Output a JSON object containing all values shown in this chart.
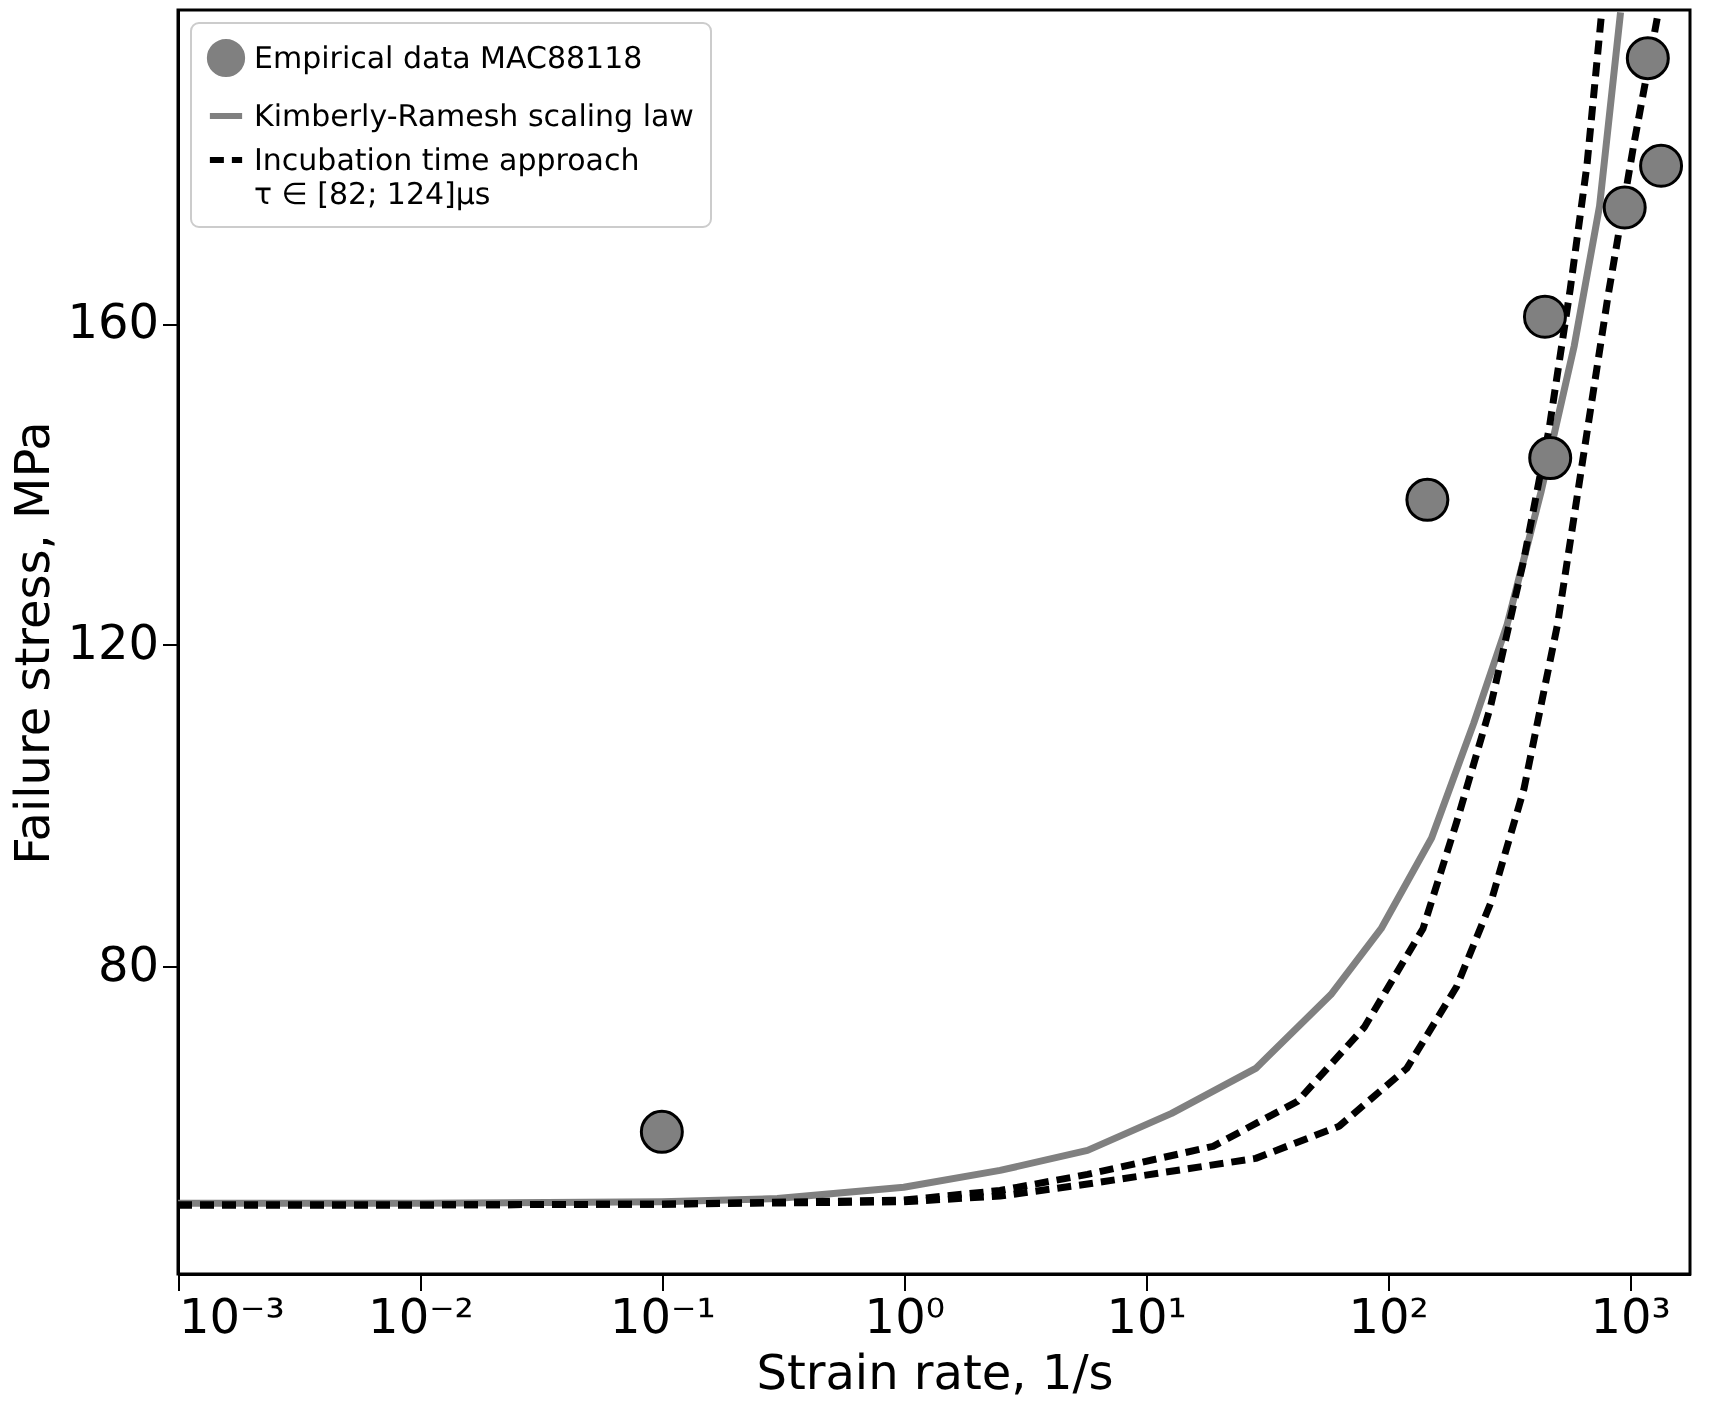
{
  "chart_data": {
    "type": "line",
    "xlabel": "Strain rate, 1/s",
    "ylabel": "Failure stress, MPa",
    "log": "x",
    "grid": false,
    "legend": "top left",
    "xlim": [
      0.001,
      1778
    ],
    "ylim": [
      41.6,
      199
    ],
    "xticks": [
      {
        "value": 0.001,
        "label": "10⁻³"
      },
      {
        "value": 0.01,
        "label": "10⁻²"
      },
      {
        "value": 0.1,
        "label": "10⁻¹"
      },
      {
        "value": 1,
        "label": "10⁰"
      },
      {
        "value": 10,
        "label": "10¹"
      },
      {
        "value": 100,
        "label": "10²"
      },
      {
        "value": 1000,
        "label": "10³"
      }
    ],
    "yticks": [
      80,
      120,
      160
    ],
    "series": [
      {
        "type": "scatter",
        "name": "Empirical data MAC88118",
        "color": "#808080",
        "marker": "circle",
        "x": [
          0.1,
          146,
          447,
          470,
          955,
          1190,
          1350
        ],
        "values": [
          59.3,
          138,
          160.8,
          143.2,
          174.4,
          193,
          179.6
        ]
      },
      {
        "name": "Kimberly-Ramesh scaling law",
        "color": "#808080",
        "line_style": "solid",
        "marker": "none",
        "x": [
          0.001,
          0.01,
          0.1,
          0.3,
          1,
          2.5,
          5.75,
          12.8,
          28.5,
          58.3,
          94,
          152,
          227,
          312,
          430,
          591,
          752,
          918
        ],
        "values": [
          50.4,
          50.4,
          50.6,
          51,
          52.4,
          54.5,
          57,
          61.6,
          67.2,
          76.4,
          84.6,
          95.9,
          110.2,
          122.5,
          138.9,
          157.2,
          174.6,
          198.7
        ]
      },
      {
        "name": "Incubation time approach\nτ ∈ [82; 124]μs",
        "color": "#000000",
        "line_style": "dashed",
        "marker": "none",
        "x": [
          0.001,
          0.01,
          0.1,
          1,
          2.5,
          5.75,
          19,
          42.4,
          80,
          140,
          193,
          266,
          366,
          466,
          569,
          667,
          767
        ],
        "values": [
          50.2,
          50.2,
          50.3,
          50.8,
          52,
          54,
          57.5,
          63.1,
          72.3,
          84.6,
          97.9,
          112.2,
          130.6,
          147,
          164.3,
          179.7,
          198.7
        ]
      },
      {
        "color": "#000000",
        "line_style": "dashed",
        "marker": "none",
        "x": [
          0.001,
          0.01,
          0.1,
          1,
          2.5,
          5.75,
          28.5,
          63,
          120,
          193,
          266,
          366,
          504,
          641,
          815,
          1035,
          1315
        ],
        "values": [
          50.2,
          50.2,
          50.3,
          50.6,
          51.3,
          52.8,
          56,
          60,
          67.2,
          77.4,
          87.7,
          102,
          122.5,
          143,
          163.4,
          181.8,
          198.7
        ]
      }
    ]
  }
}
